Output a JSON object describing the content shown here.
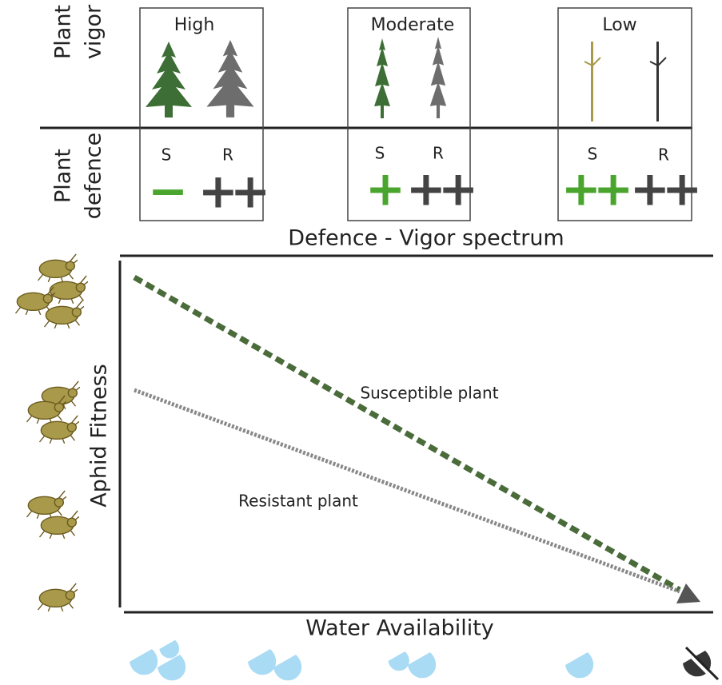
{
  "rows": {
    "vigor": [
      "Plant",
      "vigor"
    ],
    "defence": [
      "Plant",
      "defence"
    ]
  },
  "panels": [
    {
      "label": "High",
      "s_label": "S",
      "r_label": "R",
      "s_defence": "−",
      "r_defence": "++"
    },
    {
      "label": "Moderate",
      "s_label": "S",
      "r_label": "R",
      "s_defence": "+",
      "r_defence": "++"
    },
    {
      "label": "Low",
      "s_label": "S",
      "r_label": "R",
      "s_defence": "++",
      "r_defence": "++"
    }
  ],
  "spectrum_label": "Defence - Vigor spectrum",
  "graph": {
    "y_label": "Aphid Fitness",
    "x_label": "Water Availability",
    "lines": [
      {
        "label": "Susceptible plant"
      },
      {
        "label": "Resistant plant"
      }
    ]
  }
}
